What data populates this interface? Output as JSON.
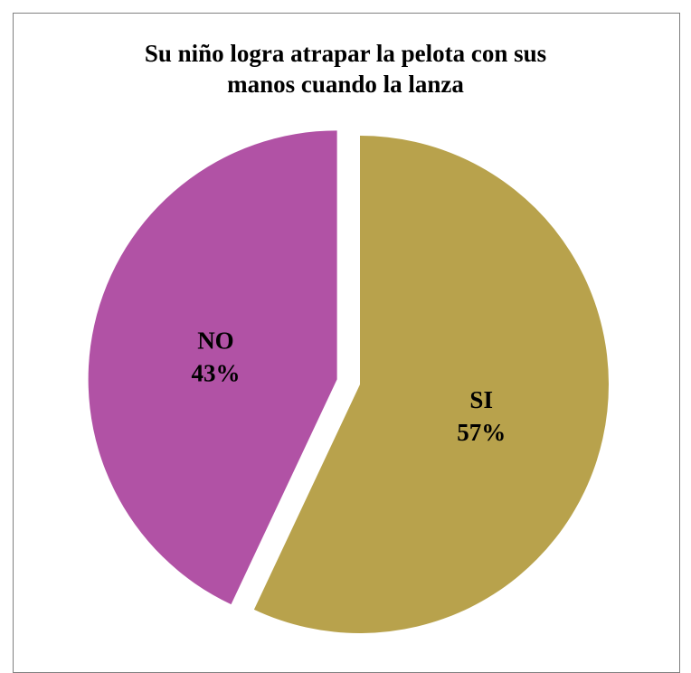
{
  "chart_data": {
    "type": "pie",
    "title_lines": [
      "Su niño logra atrapar la pelota con sus",
      "manos cuando la lanza"
    ],
    "slices": [
      {
        "name": "SI",
        "value": 57,
        "label": "57%",
        "color": "#B8A24C",
        "exploded": false
      },
      {
        "name": "NO",
        "value": 43,
        "label": "43%",
        "color": "#B152A5",
        "exploded": true
      }
    ],
    "start_angle_deg": 0,
    "direction": "clockwise",
    "legend": "none"
  }
}
